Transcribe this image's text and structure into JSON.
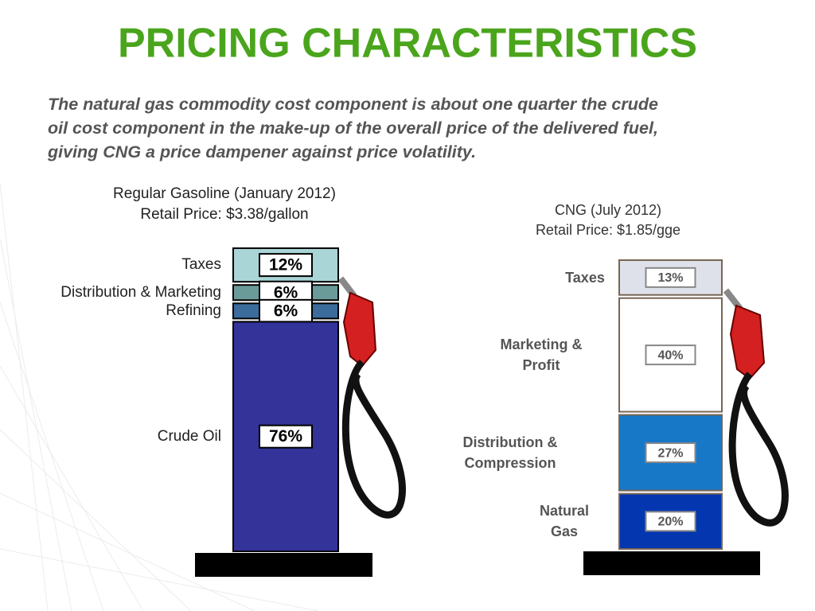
{
  "title": "PRICING CHARACTERISTICS",
  "text": [
    "The natural gas commodity cost component is about one quarter the crude",
    "oil cost component in the make-up of the overall price of the delivered fuel,",
    "giving CNG a price dampener against price volatility."
  ],
  "chart_data": [
    {
      "type": "stacked_bar",
      "title": "Regular Gasoline (January 2012)",
      "subtitle": "Retail Price: $3.38/gallon",
      "categories": [
        "Taxes",
        "Distribution & Marketing",
        "Refining",
        "Crude Oil"
      ],
      "values": [
        12,
        6,
        6,
        76
      ],
      "value_labels": [
        "12%",
        "6%",
        "6%",
        "76%"
      ],
      "colors": [
        "#a9d5d6",
        "#6b9b99",
        "#3b6c9c",
        "#333399"
      ]
    },
    {
      "type": "stacked_bar",
      "title": "CNG (July 2012)",
      "subtitle": "Retail Price: $1.85/gge",
      "categories": [
        "Taxes",
        "Marketing & Profit",
        "Distribution & Compression",
        "Natural Gas"
      ],
      "values": [
        13,
        40,
        27,
        20
      ],
      "value_labels": [
        "13%",
        "40%",
        "27%",
        "20%"
      ],
      "colors": [
        "#dfe1ea",
        "#ffffff",
        "#1878c8",
        "#0436b0"
      ]
    }
  ]
}
